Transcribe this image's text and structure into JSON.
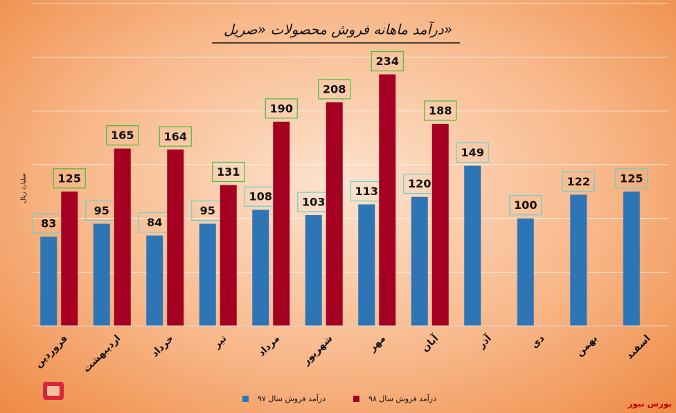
{
  "chart_data": {
    "type": "bar",
    "title": "درآمد ماهانه فروش محصولات «صریل»",
    "y_label": "میلیارد ریال",
    "categories": [
      "فروردین",
      "اردیبهشت",
      "خرداد",
      "تیر",
      "مرداد",
      "شهریور",
      "مهر",
      "آبان",
      "آذر",
      "دی",
      "بهمن",
      "اسفند"
    ],
    "series": [
      {
        "name": "درآمد فروش سال ۹۷",
        "color": "#2e75b6",
        "values": [
          83,
          95,
          84,
          95,
          108,
          103,
          113,
          120,
          149,
          100,
          122,
          125
        ]
      },
      {
        "name": "درآمد فروش سال ۹۸",
        "color": "#a50021",
        "values": [
          125,
          165,
          164,
          131,
          190,
          208,
          234,
          188,
          null,
          null,
          null,
          null
        ]
      }
    ],
    "ylim": [
      0,
      300
    ],
    "yticks": [
      0,
      50,
      100,
      150,
      200,
      250,
      300
    ],
    "grid": true,
    "legend": "bottom",
    "watermark": "بورس نیوز"
  }
}
